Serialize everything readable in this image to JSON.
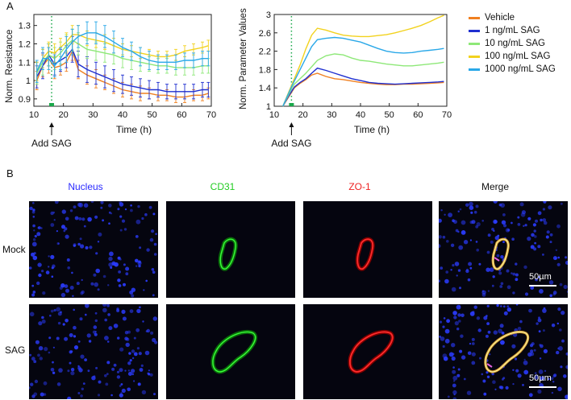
{
  "panel_a": {
    "letter": "A"
  },
  "panel_b": {
    "letter": "B"
  },
  "colors": {
    "vehicle": "#f08020",
    "sag1": "#1f2fd0",
    "sag10": "#8ee878",
    "sag100": "#f2d21e",
    "sag1000": "#2aa8e8"
  },
  "legend": {
    "items": [
      {
        "label": "Vehicle",
        "color": "#f08020"
      },
      {
        "label": "1 ng/mL SAG",
        "color": "#1f2fd0"
      },
      {
        "label": "10 ng/mL SAG",
        "color": "#8ee878"
      },
      {
        "label": "100 ng/mL SAG",
        "color": "#f2d21e"
      },
      {
        "label": "1000 ng/mL SAG",
        "color": "#2aa8e8"
      }
    ]
  },
  "chart_data": [
    {
      "type": "line",
      "title": "",
      "xlabel": "Time (h)",
      "ylabel": "Norm. Resistance",
      "xlim": [
        10,
        70
      ],
      "ylim": [
        0.86,
        1.36
      ],
      "xticks": [
        "10",
        "20",
        "30",
        "40",
        "50",
        "60",
        "70"
      ],
      "yticks": [
        "0.9",
        "1",
        "1.1",
        "1.2",
        "1.3"
      ],
      "annotation": "Add SAG",
      "annotation_x": 16,
      "error_bars": true,
      "x": [
        11,
        13,
        15,
        17,
        19,
        21,
        23,
        25,
        28,
        31,
        34,
        37,
        40,
        43,
        46,
        49,
        52,
        55,
        58,
        61,
        64,
        67,
        69
      ],
      "series": [
        {
          "name": "Vehicle",
          "values": [
            1.0,
            1.08,
            1.12,
            1.07,
            1.08,
            1.1,
            1.16,
            1.06,
            1.03,
            1.01,
            0.99,
            0.97,
            0.95,
            0.94,
            0.93,
            0.93,
            0.92,
            0.92,
            0.91,
            0.91,
            0.92,
            0.92,
            0.93
          ],
          "err": [
            0.05,
            0.06,
            0.08,
            0.06,
            0.05,
            0.05,
            0.05,
            0.05,
            0.05,
            0.05,
            0.04,
            0.04,
            0.04,
            0.04,
            0.04,
            0.03,
            0.03,
            0.03,
            0.03,
            0.03,
            0.03,
            0.03,
            0.03
          ]
        },
        {
          "name": "1 ng/mL SAG",
          "values": [
            1.02,
            1.08,
            1.14,
            1.09,
            1.11,
            1.13,
            1.17,
            1.09,
            1.06,
            1.04,
            1.02,
            1.0,
            0.98,
            0.97,
            0.96,
            0.95,
            0.95,
            0.94,
            0.94,
            0.94,
            0.94,
            0.95,
            0.95
          ],
          "err": [
            0.06,
            0.07,
            0.06,
            0.06,
            0.06,
            0.06,
            0.07,
            0.07,
            0.07,
            0.06,
            0.06,
            0.06,
            0.05,
            0.05,
            0.05,
            0.05,
            0.04,
            0.04,
            0.04,
            0.04,
            0.04,
            0.04,
            0.04
          ]
        },
        {
          "name": "10 ng/mL SAG",
          "values": [
            1.04,
            1.1,
            1.14,
            1.12,
            1.15,
            1.19,
            1.22,
            1.2,
            1.17,
            1.16,
            1.15,
            1.14,
            1.12,
            1.11,
            1.1,
            1.09,
            1.08,
            1.08,
            1.07,
            1.07,
            1.07,
            1.08,
            1.08
          ],
          "err": [
            0.06,
            0.07,
            0.06,
            0.06,
            0.06,
            0.06,
            0.06,
            0.06,
            0.05,
            0.05,
            0.05,
            0.05,
            0.05,
            0.05,
            0.05,
            0.04,
            0.04,
            0.04,
            0.04,
            0.04,
            0.04,
            0.04,
            0.04
          ]
        },
        {
          "name": "100 ng/mL SAG",
          "values": [
            1.05,
            1.12,
            1.16,
            1.15,
            1.18,
            1.21,
            1.25,
            1.25,
            1.23,
            1.22,
            1.21,
            1.19,
            1.17,
            1.16,
            1.15,
            1.14,
            1.13,
            1.13,
            1.14,
            1.16,
            1.17,
            1.18,
            1.19
          ],
          "err": [
            0.05,
            0.05,
            0.05,
            0.05,
            0.05,
            0.05,
            0.05,
            0.05,
            0.04,
            0.04,
            0.04,
            0.04,
            0.03,
            0.03,
            0.03,
            0.03,
            0.03,
            0.03,
            0.03,
            0.03,
            0.03,
            0.03,
            0.03
          ]
        },
        {
          "name": "1000 ng/mL SAG",
          "values": [
            1.05,
            1.12,
            1.12,
            1.08,
            1.12,
            1.17,
            1.21,
            1.24,
            1.26,
            1.26,
            1.24,
            1.21,
            1.18,
            1.16,
            1.13,
            1.11,
            1.1,
            1.1,
            1.1,
            1.11,
            1.11,
            1.12,
            1.12
          ],
          "err": [
            0.06,
            0.06,
            0.06,
            0.06,
            0.06,
            0.07,
            0.07,
            0.06,
            0.06,
            0.06,
            0.06,
            0.06,
            0.05,
            0.05,
            0.05,
            0.05,
            0.04,
            0.04,
            0.04,
            0.04,
            0.04,
            0.04,
            0.04
          ]
        }
      ]
    },
    {
      "type": "line",
      "title": "",
      "xlabel": "Time (h)",
      "ylabel": "Norm. Parameter Values",
      "xlim": [
        10,
        70
      ],
      "ylim": [
        1,
        3
      ],
      "xticks": [
        "10",
        "20",
        "30",
        "40",
        "50",
        "60",
        "70"
      ],
      "yticks": [
        "1",
        "1.4",
        "1.8",
        "2.2",
        "2.6",
        "3"
      ],
      "annotation": "Add SAG",
      "annotation_x": 16,
      "error_bars": false,
      "x": [
        13,
        15,
        16,
        17,
        19,
        21,
        23,
        25,
        28,
        31,
        34,
        37,
        40,
        43,
        46,
        49,
        52,
        55,
        58,
        61,
        64,
        67,
        69
      ],
      "series": [
        {
          "name": "Vehicle",
          "values": [
            1.0,
            1.2,
            1.3,
            1.4,
            1.5,
            1.58,
            1.68,
            1.72,
            1.65,
            1.6,
            1.58,
            1.55,
            1.52,
            1.5,
            1.48,
            1.47,
            1.47,
            1.48,
            1.48,
            1.49,
            1.5,
            1.51,
            1.52
          ]
        },
        {
          "name": "1 ng/mL SAG",
          "values": [
            1.0,
            1.22,
            1.32,
            1.42,
            1.52,
            1.6,
            1.72,
            1.83,
            1.78,
            1.72,
            1.66,
            1.6,
            1.56,
            1.52,
            1.5,
            1.49,
            1.48,
            1.49,
            1.5,
            1.51,
            1.52,
            1.53,
            1.54
          ]
        },
        {
          "name": "10 ng/mL SAG",
          "values": [
            1.0,
            1.25,
            1.38,
            1.48,
            1.6,
            1.72,
            1.86,
            2.0,
            2.1,
            2.14,
            2.12,
            2.05,
            2.0,
            1.98,
            1.95,
            1.92,
            1.9,
            1.88,
            1.88,
            1.9,
            1.92,
            1.94,
            1.96
          ]
        },
        {
          "name": "100 ng/mL SAG",
          "values": [
            1.0,
            1.3,
            1.45,
            1.6,
            1.9,
            2.25,
            2.55,
            2.7,
            2.66,
            2.6,
            2.55,
            2.53,
            2.52,
            2.52,
            2.54,
            2.56,
            2.6,
            2.65,
            2.7,
            2.76,
            2.84,
            2.93,
            2.98
          ]
        },
        {
          "name": "1000 ng/mL SAG",
          "values": [
            1.0,
            1.28,
            1.42,
            1.55,
            1.8,
            2.05,
            2.3,
            2.45,
            2.48,
            2.5,
            2.48,
            2.44,
            2.4,
            2.33,
            2.26,
            2.2,
            2.17,
            2.16,
            2.17,
            2.2,
            2.22,
            2.24,
            2.26
          ]
        }
      ]
    }
  ],
  "microscopy": {
    "stains": [
      "Nucleus",
      "CD31",
      "ZO-1",
      "Merge"
    ],
    "stain_colors": [
      "#2a2aff",
      "#22cc22",
      "#ee2222",
      "#111111"
    ],
    "rows": [
      "Mock",
      "SAG"
    ],
    "scale_bar_label": "50µm"
  }
}
